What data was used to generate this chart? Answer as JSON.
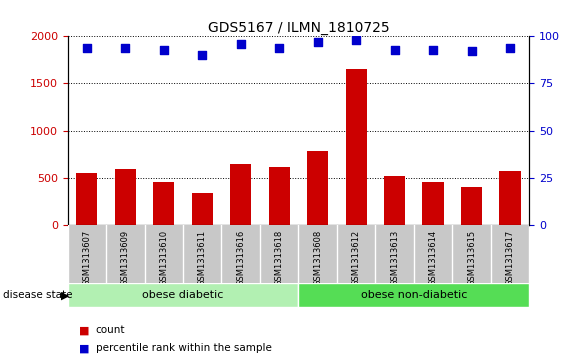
{
  "title": "GDS5167 / ILMN_1810725",
  "samples": [
    "GSM1313607",
    "GSM1313609",
    "GSM1313610",
    "GSM1313611",
    "GSM1313616",
    "GSM1313618",
    "GSM1313608",
    "GSM1313612",
    "GSM1313613",
    "GSM1313614",
    "GSM1313615",
    "GSM1313617"
  ],
  "counts": [
    550,
    590,
    460,
    335,
    650,
    610,
    785,
    1650,
    520,
    455,
    400,
    570
  ],
  "percentiles": [
    94,
    94,
    93,
    90,
    96,
    94,
    97,
    98,
    93,
    93,
    92,
    94
  ],
  "bar_color": "#cc0000",
  "dot_color": "#0000cc",
  "ylim_left": [
    0,
    2000
  ],
  "ylim_right": [
    0,
    100
  ],
  "yticks_left": [
    0,
    500,
    1000,
    1500,
    2000
  ],
  "yticks_right": [
    0,
    25,
    50,
    75,
    100
  ],
  "groups": [
    {
      "label": "obese diabetic",
      "start": 0,
      "end": 5,
      "color": "#b2f0b2"
    },
    {
      "label": "obese non-diabetic",
      "start": 6,
      "end": 11,
      "color": "#55dd55"
    }
  ],
  "disease_state_label": "disease state",
  "legend_count_label": "count",
  "legend_pct_label": "percentile rank within the sample",
  "tick_area_bg": "#c8c8c8",
  "bar_width": 0.55,
  "dot_size": 35
}
